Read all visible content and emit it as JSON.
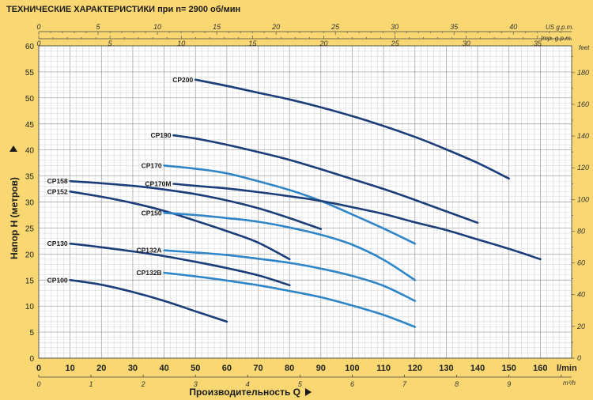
{
  "chart_data": {
    "type": "line",
    "title": "ТЕХНИЧЕСКИЕ ХАРАКТЕРИСТИКИ при n= 2900 об/мин",
    "xlabel": "Производительность Q",
    "ylabel": "Напор H   (метров)",
    "x_unit": "l/min",
    "x_unit2": "m³/h",
    "y_unit2": "feet",
    "x_unit_top1": "US g.p.m.",
    "x_unit_top2": "Imp. g.p.m.",
    "xlim": [
      0,
      170
    ],
    "ylim": [
      0,
      60
    ],
    "x_ticks": [
      0,
      10,
      20,
      30,
      40,
      50,
      60,
      70,
      80,
      90,
      100,
      110,
      120,
      130,
      140,
      150,
      160
    ],
    "y_ticks": [
      0,
      5,
      10,
      15,
      20,
      25,
      30,
      35,
      40,
      45,
      50,
      55,
      60
    ],
    "m3h_ticks": [
      0,
      1,
      2,
      3,
      4,
      5,
      6,
      7,
      8,
      9
    ],
    "feet_ticks": [
      0,
      20,
      40,
      60,
      80,
      100,
      120,
      140,
      160,
      180
    ],
    "usgpm_ticks": [
      0,
      5,
      10,
      15,
      20,
      25,
      30,
      35,
      40
    ],
    "impgpm_ticks": [
      0,
      5,
      10,
      15,
      20,
      25,
      30,
      35
    ],
    "grid": true,
    "series": [
      {
        "name": "CP200",
        "color": "#1b3d7a",
        "x": [
          50,
          60,
          70,
          80,
          90,
          100,
          110,
          120,
          130,
          140,
          150
        ],
        "y": [
          53.5,
          52.3,
          51.0,
          49.7,
          48.2,
          46.5,
          44.6,
          42.5,
          40.1,
          37.5,
          34.5
        ]
      },
      {
        "name": "CP190",
        "color": "#1b3d7a",
        "x": [
          43,
          50,
          60,
          70,
          80,
          90,
          100,
          110,
          120,
          130,
          140
        ],
        "y": [
          42.8,
          42.2,
          41.0,
          39.6,
          38.1,
          36.3,
          34.4,
          32.5,
          30.4,
          28.2,
          26.0
        ]
      },
      {
        "name": "CP170",
        "color": "#2e86c8",
        "x": [
          40,
          50,
          60,
          70,
          80,
          90,
          100,
          110,
          120
        ],
        "y": [
          37.0,
          36.4,
          35.5,
          34.0,
          32.3,
          30.2,
          27.6,
          24.9,
          22.0
        ]
      },
      {
        "name": "CP170M",
        "color": "#1b3d7a",
        "x": [
          43,
          50,
          60,
          70,
          80,
          90,
          100,
          110,
          120,
          130,
          140,
          150,
          160
        ],
        "y": [
          33.5,
          33.1,
          32.6,
          31.9,
          31.1,
          30.2,
          29.0,
          27.7,
          26.1,
          24.6,
          22.8,
          21.0,
          19.0
        ]
      },
      {
        "name": "CP158",
        "color": "#1b3d7a",
        "x": [
          10,
          20,
          30,
          40,
          50,
          60,
          70,
          80,
          90
        ],
        "y": [
          34.0,
          33.6,
          33.1,
          32.4,
          31.5,
          30.3,
          28.8,
          26.9,
          24.8
        ]
      },
      {
        "name": "CP152",
        "color": "#1b3d7a",
        "x": [
          10,
          20,
          30,
          40,
          50,
          60,
          70,
          80
        ],
        "y": [
          32.0,
          31.0,
          29.8,
          28.3,
          26.4,
          24.4,
          22.2,
          19.0
        ]
      },
      {
        "name": "CP150",
        "color": "#2e86c8",
        "x": [
          40,
          50,
          60,
          70,
          80,
          90,
          100,
          110,
          120
        ],
        "y": [
          27.9,
          27.5,
          26.9,
          26.2,
          25.1,
          23.7,
          21.8,
          18.9,
          15.0
        ]
      },
      {
        "name": "CP130",
        "color": "#1b3d7a",
        "x": [
          10,
          20,
          30,
          40,
          50,
          60,
          70,
          80
        ],
        "y": [
          22.0,
          21.3,
          20.5,
          19.6,
          18.5,
          17.3,
          15.9,
          14.0
        ]
      },
      {
        "name": "CP132A",
        "color": "#2e86c8",
        "x": [
          40,
          50,
          60,
          70,
          80,
          90,
          100,
          110,
          120
        ],
        "y": [
          20.7,
          20.3,
          19.8,
          19.1,
          18.3,
          17.2,
          15.8,
          13.9,
          11.0
        ]
      },
      {
        "name": "CP132B",
        "color": "#2e86c8",
        "x": [
          40,
          50,
          60,
          70,
          80,
          90,
          100,
          110,
          120
        ],
        "y": [
          16.4,
          15.7,
          14.9,
          14.0,
          12.9,
          11.7,
          10.1,
          8.3,
          6.0
        ]
      },
      {
        "name": "CP100",
        "color": "#1b3d7a",
        "x": [
          10,
          20,
          30,
          40,
          50,
          60
        ],
        "y": [
          15.0,
          14.1,
          12.7,
          11.0,
          9.0,
          7.0
        ]
      }
    ]
  }
}
